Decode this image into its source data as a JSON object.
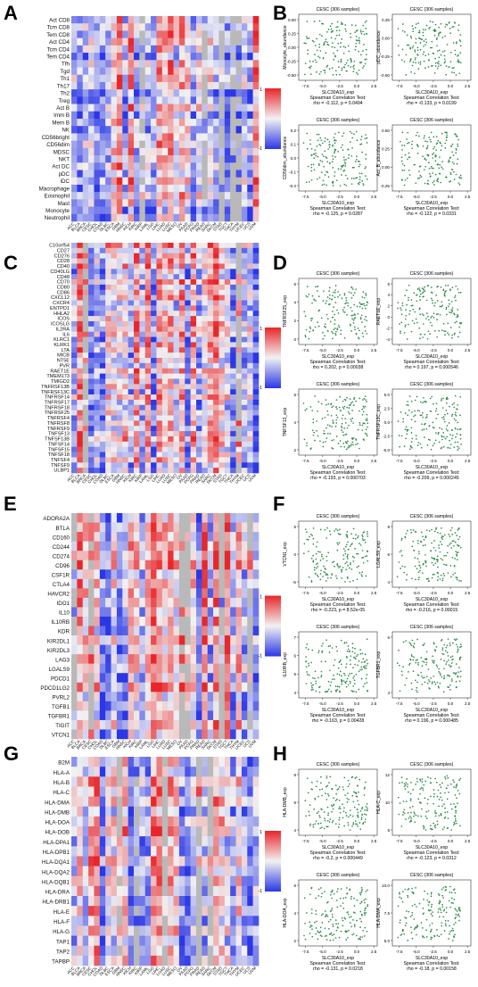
{
  "panels": [
    {
      "letter": "A",
      "row_labels": [
        "Act CD8",
        "Tcm CD8",
        "Tem CD8",
        "Act CD4",
        "Tcm CD4",
        "Tem CD4",
        "Tfh",
        "Tgd",
        "Th1",
        "Th17",
        "Th2",
        "Treg",
        "Act B",
        "Imm B",
        "Mem B",
        "NK",
        "CD56bright",
        "CD56dim",
        "MDSC",
        "NKT",
        "Act DC",
        "pDC",
        "iDC",
        "Macrophage",
        "Eosinophil",
        "Mast",
        "Monocyte",
        "Neutrophil"
      ],
      "legend": {
        "top": "1",
        "bottom": "-1"
      }
    },
    {
      "letter": "C",
      "row_labels": [
        "C10orf54",
        "CD27",
        "CD276",
        "CD28",
        "CD40",
        "CD40LG",
        "CD48",
        "CD70",
        "CD80",
        "CD86",
        "CXCL12",
        "CXCR4",
        "ENTPD1",
        "HHLA2",
        "ICOS",
        "ICOSLG",
        "IL2RA",
        "IL6",
        "KLRC1",
        "KLRK1",
        "LTA",
        "MICB",
        "NT5E",
        "PVR",
        "RAET1E",
        "TMEM173",
        "TMIGD2",
        "TNFRSF13B",
        "TNFRSF13C",
        "TNFRSF14",
        "TNFRSF17",
        "TNFRSF18",
        "TNFRSF25",
        "TNFRSF4",
        "TNFRSF8",
        "TNFRSF9",
        "TNFSF13",
        "TNFSF13B",
        "TNFSF14",
        "TNFSF15",
        "TNFSF18",
        "TNFSF4",
        "TNFSF9",
        "ULBP1"
      ],
      "legend": {
        "top": "1",
        "bottom": "-1"
      }
    },
    {
      "letter": "E",
      "row_labels": [
        "ADORA2A",
        "BTLA",
        "CD160",
        "CD244",
        "CD274",
        "CD96",
        "CSF1R",
        "CTLA4",
        "HAVCR2",
        "IDO1",
        "IL10",
        "IL10RB",
        "KDR",
        "KIR2DL1",
        "KIR2DL3",
        "LAG3",
        "LGALS9",
        "PDCD1",
        "PDCD1LG2",
        "PVRL2",
        "TGFB1",
        "TGFBR1",
        "TIGIT",
        "VTCN1"
      ],
      "legend": {
        "top": "1",
        "bottom": "-1"
      }
    },
    {
      "letter": "G",
      "row_labels": [
        "B2M",
        "HLA-A",
        "HLA-B",
        "HLA-C",
        "HLA-DMA",
        "HLA-DMB",
        "HLA-DOA",
        "HLA-DOB",
        "HLA-DPA1",
        "HLA-DPB1",
        "HLA-DQA1",
        "HLA-DQA2",
        "HLA-DQB1",
        "HLA-DRA",
        "HLA-DRB1",
        "HLA-E",
        "HLA-F",
        "HLA-G",
        "TAP1",
        "TAP2",
        "TAPBP"
      ],
      "legend": {
        "top": "1",
        "bottom": "-1"
      }
    }
  ],
  "scatter_panels": [
    {
      "letter": "B",
      "plots": [
        {
          "title": "CESC (306 samples)",
          "xlabel": "SLC30A10_exp",
          "ylabel": "Monocyte_abundance",
          "stat1": "Spearman Correlation Test:",
          "stat2": "rho = -0.112, p = 0.0494",
          "yticks": [
            "0.50",
            "0.25",
            "0.00",
            "-0.25",
            "-0.50"
          ]
        },
        {
          "title": "CESC (306 samples)",
          "xlabel": "SLC30A10_exp",
          "ylabel": "pDC_abundance",
          "stat1": "Spearman Correlation Test:",
          "stat2": "rho = -0.133, p = 0.0199",
          "yticks": [
            "0.25",
            "0.00",
            "-0.25",
            "-0.50"
          ]
        },
        {
          "title": "CESC (306 samples)",
          "xlabel": "SLC30A10_exp",
          "ylabel": "CD56dim_abundance",
          "stat1": "Spearman Correlation Test:",
          "stat2": "rho = -0.125, p = 0.0287",
          "yticks": [
            "0.2",
            "0.1",
            "0.0",
            "-0.1",
            "-0.2"
          ]
        },
        {
          "title": "CESC (306 samples)",
          "xlabel": "SLC30A10_exp",
          "ylabel": "Act_B_abundance",
          "stat1": "Spearman Correlation Test:",
          "stat2": "rho = -0.122, p = 0.0331",
          "yticks": [
            "0.50",
            "0.25",
            "0.00",
            "-0.25"
          ]
        }
      ]
    },
    {
      "letter": "D",
      "plots": [
        {
          "title": "CESC (306 samples)",
          "xlabel": "SLC30A10_exp",
          "ylabel": "TNFRSF25_exp",
          "stat1": "Spearman Correlation Test:",
          "stat2": "rho = 0.202, p = 0.00038",
          "yticks": [
            "6",
            "4",
            "2",
            "0"
          ]
        },
        {
          "title": "CESC (306 samples)",
          "xlabel": "SLC30A10_exp",
          "ylabel": "RAET1E_exp",
          "stat1": "Spearman Correlation Test:",
          "stat2": "rho = 0.197, p = 0.000546",
          "yticks": [
            "6",
            "4",
            "2",
            "0",
            "-2",
            "-4"
          ]
        },
        {
          "title": "CESC (306 samples)",
          "xlabel": "SLC30A10_exp",
          "ylabel": "TNFSF13_exp",
          "stat1": "Spearman Correlation Test:",
          "stat2": "rho = -0.193, p = 0.000703",
          "yticks": [
            "6",
            "4",
            "2"
          ]
        },
        {
          "title": "CESC (306 samples)",
          "xlabel": "SLC30A10_exp",
          "ylabel": "TNFRSF13C_exp",
          "stat1": "Spearman Correlation Test:",
          "stat2": "rho = -0.209, p = 0.000245",
          "yticks": [
            "5.0",
            "2.5",
            "0.0",
            "-2.5",
            "-5.0"
          ]
        }
      ]
    },
    {
      "letter": "F",
      "plots": [
        {
          "title": "CESC (306 samples)",
          "xlabel": "SLC30A10_exp",
          "ylabel": "VTCN1_exp",
          "stat1": "Spearman Correlation Test:",
          "stat2": "rho = -0.223, p = 8.52e-05",
          "yticks": [
            "5",
            "0",
            "-5"
          ]
        },
        {
          "title": "CESC (306 samples)",
          "xlabel": "SLC30A10_exp",
          "ylabel": "LGALS9_exp",
          "stat1": "Spearman Correlation Test:",
          "stat2": "rho = -0.216, p = 0.00015",
          "yticks": [
            "8",
            "6",
            "4"
          ]
        },
        {
          "title": "CESC (306 samples)",
          "xlabel": "SLC30A10_exp",
          "ylabel": "IL10RB_exp",
          "stat1": "Spearman Correlation Test:",
          "stat2": "rho = -0.163, p = 0.00428",
          "yticks": [
            "7",
            "6",
            "5",
            "4"
          ]
        },
        {
          "title": "CESC (306 samples)",
          "xlabel": "SLC30A10_exp",
          "ylabel": "TGFBR1_exp",
          "stat1": "Spearman Correlation Test:",
          "stat2": "rho = 0.196, p = 0.000485",
          "yticks": [
            "6",
            "4"
          ]
        }
      ]
    },
    {
      "letter": "H",
      "plots": [
        {
          "title": "CESC (306 samples)",
          "xlabel": "SLC30A10_exp",
          "ylabel": "HLA-DMB_exp",
          "stat1": "Spearman Correlation Test:",
          "stat2": "rho = -0.2, p = 0.000449",
          "yticks": [
            "8",
            "6",
            "4"
          ]
        },
        {
          "title": "CESC (306 samples)",
          "xlabel": "SLC30A10_exp",
          "ylabel": "HLA-C_exp",
          "stat1": "Spearman Correlation Test:",
          "stat2": "rho = -0.123, p = 0.0312",
          "yticks": [
            "12",
            "10",
            "8"
          ]
        },
        {
          "title": "CESC (306 samples)",
          "xlabel": "SLC30A10_exp",
          "ylabel": "HLA-DOA_exp",
          "stat1": "Spearman Correlation Test:",
          "stat2": "rho = -0.131, p = 0.0218",
          "yticks": [
            "6",
            "4",
            "2"
          ]
        },
        {
          "title": "CESC (306 samples)",
          "xlabel": "SLC30A10_exp",
          "ylabel": "HLA-DMA_exp",
          "stat1": "Spearman Correlation Test:",
          "stat2": "rho = -0.18, p = 0.00158",
          "yticks": [
            "10.0",
            "7.5",
            "5.0"
          ]
        }
      ]
    }
  ],
  "shared": {
    "column_labels": [
      "ACC",
      "BLCA",
      "BRCA",
      "CESC",
      "CHOL",
      "COAD",
      "DLBC",
      "ESCA",
      "GBM",
      "HNSC",
      "KICH",
      "KIRC",
      "KIRP",
      "LAML",
      "LGG",
      "LIHC",
      "LUAD",
      "LUSC",
      "MESO",
      "OV",
      "PAAD",
      "PCPG",
      "PRAD",
      "READ",
      "SARC",
      "SKCM",
      "STAD",
      "TGCT",
      "THCA",
      "THYM",
      "UCEC",
      "UCS",
      "UVM"
    ],
    "scatter_xticks": [
      "-7.5",
      "-5.0",
      "-2.5",
      "0.0",
      "2.5"
    ],
    "colors": {
      "pos": "#e8262a",
      "neg": "#2b37e6",
      "mid": "#f2f2f2",
      "na": "#b9b9b9",
      "point": "#2e8b4a"
    }
  },
  "chart_data": [
    {
      "type": "heatmap",
      "panel": "A",
      "rows": 28,
      "cols": 33,
      "value_range": [
        -1,
        1
      ],
      "note_cols": "cancer types"
    },
    {
      "type": "scatter",
      "panel": "B",
      "x_range": [
        -8,
        3
      ],
      "series": [
        {
          "values": []
        }
      ]
    },
    {
      "type": "heatmap",
      "panel": "C",
      "rows": 44,
      "cols": 33,
      "value_range": [
        -1,
        1
      ]
    },
    {
      "type": "scatter",
      "panel": "D",
      "x_range": [
        -8,
        3
      ],
      "series": [
        {
          "values": []
        }
      ]
    },
    {
      "type": "heatmap",
      "panel": "E",
      "rows": 24,
      "cols": 33,
      "value_range": [
        -1,
        1
      ]
    },
    {
      "type": "scatter",
      "panel": "F",
      "x_range": [
        -8,
        3
      ],
      "series": [
        {
          "values": []
        }
      ]
    },
    {
      "type": "heatmap",
      "panel": "G",
      "rows": 21,
      "cols": 33,
      "value_range": [
        -1,
        1
      ]
    },
    {
      "type": "scatter",
      "panel": "H",
      "x_range": [
        -8,
        3
      ],
      "series": [
        {
          "values": []
        }
      ]
    }
  ]
}
